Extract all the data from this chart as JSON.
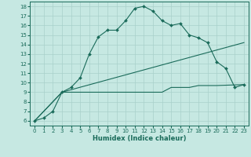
{
  "xlabel": "Humidex (Indice chaleur)",
  "bg_color": "#c6e8e2",
  "line_color": "#1a6b5a",
  "grid_color": "#a8d0ca",
  "xlim": [
    -0.5,
    23.5
  ],
  "ylim": [
    5.5,
    18.5
  ],
  "xticks": [
    0,
    1,
    2,
    3,
    4,
    5,
    6,
    7,
    8,
    9,
    10,
    11,
    12,
    13,
    14,
    15,
    16,
    17,
    18,
    19,
    20,
    21,
    22,
    23
  ],
  "yticks": [
    6,
    7,
    8,
    9,
    10,
    11,
    12,
    13,
    14,
    15,
    16,
    17,
    18
  ],
  "curve1_x": [
    0,
    1,
    2,
    3,
    4,
    5,
    6,
    7,
    8,
    9,
    10,
    11,
    12,
    13,
    14,
    15,
    16,
    17,
    18,
    19,
    20,
    21,
    22,
    23
  ],
  "curve1_y": [
    6.0,
    6.3,
    7.0,
    9.0,
    9.5,
    10.5,
    13.0,
    14.8,
    15.5,
    15.5,
    16.5,
    17.8,
    18.0,
    17.5,
    16.5,
    16.0,
    16.2,
    15.0,
    14.7,
    14.2,
    12.2,
    11.5,
    9.5,
    9.8
  ],
  "curve2_x": [
    0,
    3,
    23
  ],
  "curve2_y": [
    6.0,
    9.0,
    14.2
  ],
  "curve3_x": [
    0,
    3,
    10,
    11,
    12,
    13,
    14,
    15,
    16,
    17,
    18,
    19,
    20,
    23
  ],
  "curve3_y": [
    6.0,
    9.0,
    9.0,
    9.0,
    9.0,
    9.0,
    9.0,
    9.5,
    9.5,
    9.5,
    9.7,
    9.7,
    9.7,
    9.8
  ]
}
